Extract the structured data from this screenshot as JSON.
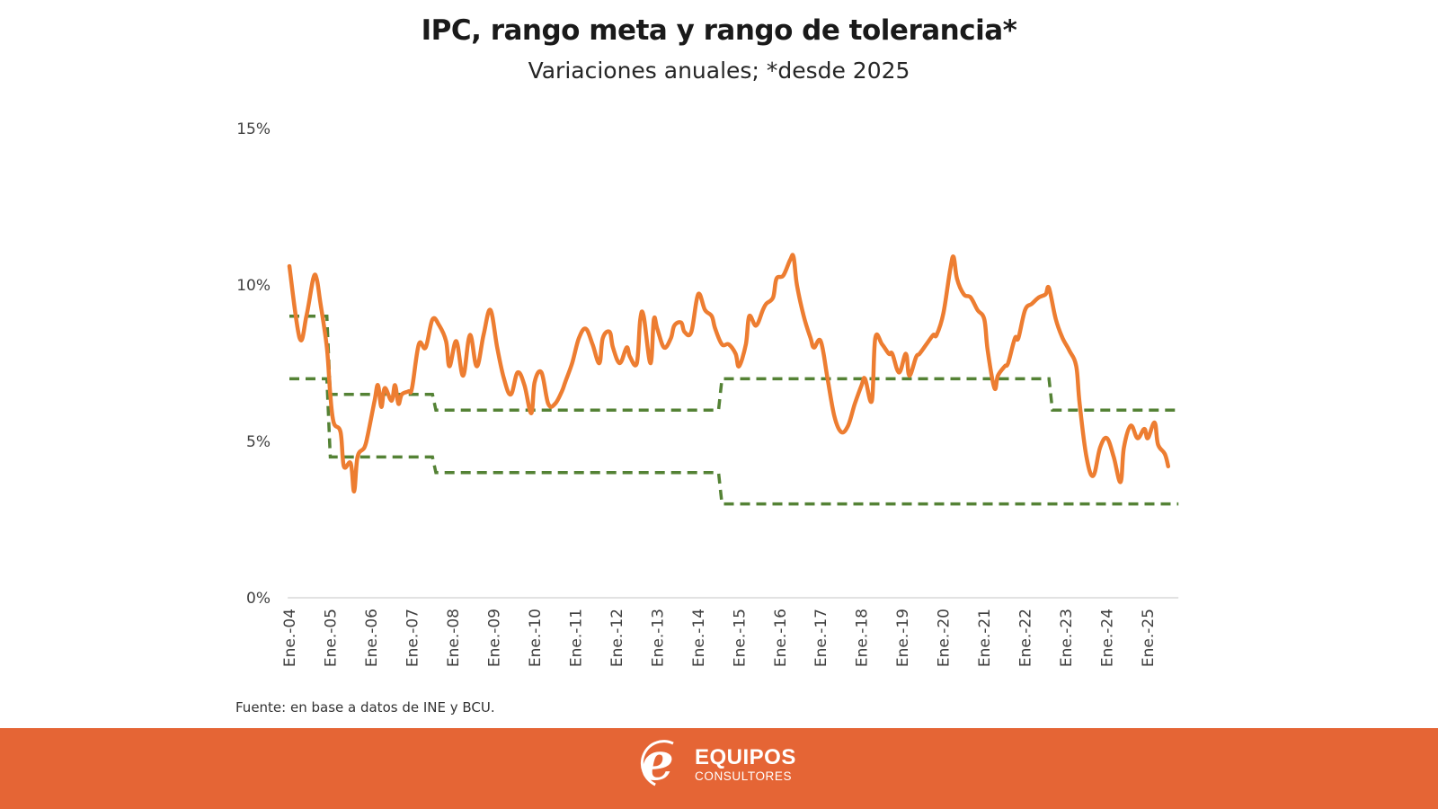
{
  "colors": {
    "ipc_line": "#ED7D31",
    "range_dash": "#548235",
    "footer_bg": "#E56535",
    "axis": "#D9D9D9"
  },
  "chart_data": {
    "type": "line",
    "title": "IPC, rango meta y rango de tolerancia*",
    "subtitle": "Variaciones anuales; *desde 2025",
    "xlabel": "",
    "ylabel": "",
    "ylim": [
      0,
      15
    ],
    "yticks": [
      "0%",
      "5%",
      "10%",
      "15%"
    ],
    "ytick_values": [
      0,
      5,
      10,
      15
    ],
    "xlim_months": [
      0,
      261
    ],
    "x_tick_labels": [
      "Ene.-04",
      "Ene.-05",
      "Ene.-06",
      "Ene.-07",
      "Ene.-08",
      "Ene.-09",
      "Ene.-10",
      "Ene.-11",
      "Ene.-12",
      "Ene.-13",
      "Ene.-14",
      "Ene.-15",
      "Ene.-16",
      "Ene.-17",
      "Ene.-18",
      "Ene.-19",
      "Ene.-20",
      "Ene.-21",
      "Ene.-22",
      "Ene.-23",
      "Ene.-24",
      "Ene.-25"
    ],
    "x_unit": "months since Jan 2004",
    "grid": false,
    "legend": "none",
    "series": [
      {
        "name": "IPC (variación anual)",
        "style": "solid",
        "points": [
          [
            0,
            10.6
          ],
          [
            3,
            8.3
          ],
          [
            5,
            9.0
          ],
          [
            7,
            10.2
          ],
          [
            8,
            10.2
          ],
          [
            9,
            9.5
          ],
          [
            11,
            8.0
          ],
          [
            12,
            6.5
          ],
          [
            13,
            5.6
          ],
          [
            15,
            5.3
          ],
          [
            16,
            4.2
          ],
          [
            18,
            4.3
          ],
          [
            19,
            3.4
          ],
          [
            20,
            4.5
          ],
          [
            22,
            4.8
          ],
          [
            23,
            5.2
          ],
          [
            25,
            6.3
          ],
          [
            26,
            6.8
          ],
          [
            27,
            6.1
          ],
          [
            28,
            6.7
          ],
          [
            30,
            6.3
          ],
          [
            31,
            6.8
          ],
          [
            32,
            6.2
          ],
          [
            33,
            6.5
          ],
          [
            35,
            6.6
          ],
          [
            36,
            6.7
          ],
          [
            38,
            8.1
          ],
          [
            40,
            8.0
          ],
          [
            42,
            8.9
          ],
          [
            44,
            8.7
          ],
          [
            46,
            8.2
          ],
          [
            47,
            7.4
          ],
          [
            49,
            8.2
          ],
          [
            51,
            7.1
          ],
          [
            53,
            8.4
          ],
          [
            55,
            7.4
          ],
          [
            57,
            8.4
          ],
          [
            59,
            9.2
          ],
          [
            61,
            8.0
          ],
          [
            63,
            7.0
          ],
          [
            65,
            6.5
          ],
          [
            67,
            7.2
          ],
          [
            69,
            6.8
          ],
          [
            71,
            5.9
          ],
          [
            72,
            6.9
          ],
          [
            74,
            7.2
          ],
          [
            76,
            6.2
          ],
          [
            78,
            6.2
          ],
          [
            80,
            6.6
          ],
          [
            81,
            6.9
          ],
          [
            83,
            7.5
          ],
          [
            85,
            8.3
          ],
          [
            87,
            8.6
          ],
          [
            89,
            8.1
          ],
          [
            91,
            7.5
          ],
          [
            92,
            8.3
          ],
          [
            94,
            8.5
          ],
          [
            95,
            8.0
          ],
          [
            97,
            7.5
          ],
          [
            99,
            8.0
          ],
          [
            100,
            7.7
          ],
          [
            102,
            7.5
          ],
          [
            103,
            8.9
          ],
          [
            104,
            9.0
          ],
          [
            106,
            7.5
          ],
          [
            107,
            8.9
          ],
          [
            108,
            8.6
          ],
          [
            110,
            8.0
          ],
          [
            112,
            8.3
          ],
          [
            113,
            8.7
          ],
          [
            115,
            8.8
          ],
          [
            116,
            8.5
          ],
          [
            118,
            8.5
          ],
          [
            120,
            9.7
          ],
          [
            122,
            9.2
          ],
          [
            124,
            9.0
          ],
          [
            125,
            8.6
          ],
          [
            127,
            8.1
          ],
          [
            129,
            8.1
          ],
          [
            131,
            7.8
          ],
          [
            132,
            7.4
          ],
          [
            134,
            8.1
          ],
          [
            135,
            9.0
          ],
          [
            137,
            8.7
          ],
          [
            139,
            9.2
          ],
          [
            140,
            9.4
          ],
          [
            142,
            9.6
          ],
          [
            143,
            10.2
          ],
          [
            145,
            10.3
          ],
          [
            147,
            10.8
          ],
          [
            148,
            10.9
          ],
          [
            149,
            10.0
          ],
          [
            151,
            9.0
          ],
          [
            153,
            8.3
          ],
          [
            154,
            8.0
          ],
          [
            156,
            8.2
          ],
          [
            158,
            7.0
          ],
          [
            160,
            5.8
          ],
          [
            162,
            5.3
          ],
          [
            164,
            5.5
          ],
          [
            166,
            6.2
          ],
          [
            168,
            6.8
          ],
          [
            169,
            7.0
          ],
          [
            171,
            6.3
          ],
          [
            172,
            8.3
          ],
          [
            174,
            8.1
          ],
          [
            176,
            7.8
          ],
          [
            177,
            7.8
          ],
          [
            179,
            7.2
          ],
          [
            181,
            7.8
          ],
          [
            182,
            7.1
          ],
          [
            184,
            7.7
          ],
          [
            185,
            7.8
          ],
          [
            187,
            8.1
          ],
          [
            189,
            8.4
          ],
          [
            190,
            8.4
          ],
          [
            192,
            9.1
          ],
          [
            194,
            10.5
          ],
          [
            195,
            10.9
          ],
          [
            196,
            10.2
          ],
          [
            198,
            9.7
          ],
          [
            200,
            9.6
          ],
          [
            202,
            9.2
          ],
          [
            204,
            8.9
          ],
          [
            205,
            7.9
          ],
          [
            207,
            6.7
          ],
          [
            208,
            7.1
          ],
          [
            210,
            7.4
          ],
          [
            211,
            7.5
          ],
          [
            213,
            8.3
          ],
          [
            214,
            8.3
          ],
          [
            216,
            9.2
          ],
          [
            218,
            9.4
          ],
          [
            220,
            9.6
          ],
          [
            222,
            9.7
          ],
          [
            223,
            9.9
          ],
          [
            225,
            8.9
          ],
          [
            227,
            8.3
          ],
          [
            229,
            7.9
          ],
          [
            231,
            7.4
          ],
          [
            232,
            6.2
          ],
          [
            234,
            4.5
          ],
          [
            236,
            3.9
          ],
          [
            238,
            4.8
          ],
          [
            240,
            5.1
          ],
          [
            242,
            4.5
          ],
          [
            244,
            3.7
          ],
          [
            245,
            4.8
          ],
          [
            247,
            5.5
          ],
          [
            249,
            5.1
          ],
          [
            251,
            5.4
          ],
          [
            252,
            5.1
          ],
          [
            254,
            5.6
          ],
          [
            255,
            4.9
          ],
          [
            257,
            4.6
          ],
          [
            258,
            4.2
          ]
        ]
      },
      {
        "name": "Rango meta / tolerancia (superior)",
        "style": "dashed",
        "steps": [
          [
            0,
            9.0
          ],
          [
            11,
            9.0
          ],
          [
            12,
            6.5
          ],
          [
            42,
            6.5
          ],
          [
            43,
            6.0
          ],
          [
            126,
            6.0
          ],
          [
            127,
            7.0
          ],
          [
            223,
            7.0
          ],
          [
            224,
            6.0
          ],
          [
            261,
            6.0
          ]
        ]
      },
      {
        "name": "Rango meta / tolerancia (inferior)",
        "style": "dashed",
        "steps": [
          [
            0,
            7.0
          ],
          [
            11,
            7.0
          ],
          [
            12,
            4.5
          ],
          [
            42,
            4.5
          ],
          [
            43,
            4.0
          ],
          [
            126,
            4.0
          ],
          [
            127,
            3.0
          ],
          [
            261,
            3.0
          ]
        ]
      }
    ],
    "source": "Fuente: en base a datos de INE y BCU."
  },
  "footer": {
    "brand_name": "EQUIPOS",
    "brand_sub": "CONSULTORES",
    "logo_glyph": "e"
  }
}
